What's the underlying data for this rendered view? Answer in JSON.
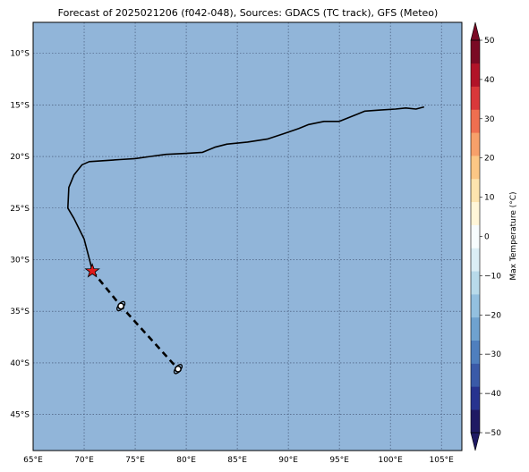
{
  "title": "Forecast of 2025021206 (f042-048), Sources: GDACS (TC track), GFS (Meteo)",
  "colors": {
    "ocean_field": "#91b5d9",
    "grid": "#3a4a6a",
    "track": "#000000",
    "marker": "#e11b1b"
  },
  "map": {
    "lon_range": [
      65,
      107
    ],
    "lat_range": [
      -48.5,
      -7
    ],
    "lon_ticks": [
      65,
      70,
      75,
      80,
      85,
      90,
      95,
      100,
      105
    ],
    "lon_labels": [
      "65°E",
      "70°E",
      "75°E",
      "80°E",
      "85°E",
      "90°E",
      "95°E",
      "100°E",
      "105°E"
    ],
    "lat_ticks": [
      -10,
      -15,
      -20,
      -25,
      -30,
      -35,
      -40,
      -45
    ],
    "lat_labels": [
      "10°S",
      "15°S",
      "20°S",
      "25°S",
      "30°S",
      "35°S",
      "40°S",
      "45°S"
    ],
    "gridlines": true
  },
  "chart_data": {
    "type": "map",
    "observed_track": [
      [
        103.3,
        -15.2
      ],
      [
        102.5,
        -15.4
      ],
      [
        101.5,
        -15.3
      ],
      [
        100.5,
        -15.4
      ],
      [
        99.0,
        -15.5
      ],
      [
        97.5,
        -15.6
      ],
      [
        96.5,
        -16.0
      ],
      [
        95.0,
        -16.6
      ],
      [
        93.5,
        -16.6
      ],
      [
        92.0,
        -16.9
      ],
      [
        91.0,
        -17.3
      ],
      [
        89.5,
        -17.8
      ],
      [
        88.0,
        -18.3
      ],
      [
        86.0,
        -18.6
      ],
      [
        84.0,
        -18.8
      ],
      [
        82.8,
        -19.1
      ],
      [
        81.6,
        -19.6
      ],
      [
        80.0,
        -19.7
      ],
      [
        78.0,
        -19.8
      ],
      [
        76.5,
        -20.0
      ],
      [
        75.0,
        -20.2
      ],
      [
        73.5,
        -20.3
      ],
      [
        72.0,
        -20.4
      ],
      [
        70.5,
        -20.5
      ],
      [
        69.8,
        -20.8
      ],
      [
        69.0,
        -21.8
      ],
      [
        68.5,
        -23.0
      ],
      [
        68.4,
        -25.0
      ],
      [
        69.0,
        -26.0
      ],
      [
        70.0,
        -28.0
      ],
      [
        70.6,
        -30.3
      ],
      [
        70.8,
        -31.1
      ]
    ],
    "forecast_track": [
      [
        70.8,
        -31.1
      ],
      [
        73.6,
        -34.5
      ],
      [
        79.2,
        -40.6
      ]
    ],
    "current_position": [
      70.8,
      -31.1
    ],
    "forecast_points": [
      [
        73.6,
        -34.5
      ],
      [
        79.2,
        -40.6
      ]
    ],
    "colorbar": {
      "label": "Max Temperature (°C)",
      "min": -50,
      "max": 50,
      "ticks": [
        50,
        40,
        30,
        20,
        10,
        0,
        -10,
        -20,
        -30,
        -40,
        -50
      ],
      "tick_labels": [
        "50",
        "40",
        "30",
        "20",
        "10",
        "0",
        "−10",
        "−20",
        "−30",
        "−40",
        "−50"
      ],
      "colors": [
        "#1f1a63",
        "#27338f",
        "#3a5aa8",
        "#4f7fbe",
        "#6fa2cf",
        "#93c0df",
        "#b8daea",
        "#dbeef5",
        "#f7fcfd",
        "#fff6d8",
        "#fde4ae",
        "#fcc785",
        "#f7a06a",
        "#ef6f50",
        "#d9383a",
        "#b11328",
        "#7a0a24"
      ]
    }
  }
}
